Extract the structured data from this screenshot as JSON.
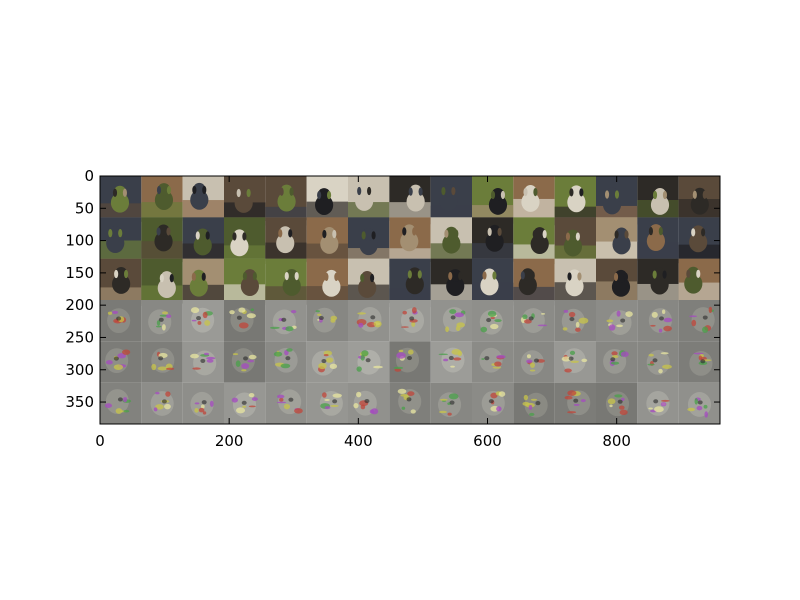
{
  "chart_data": {
    "type": "heatmap",
    "title": "",
    "xlabel": "",
    "ylabel": "",
    "xlim": [
      0,
      960
    ],
    "ylim": [
      384,
      0
    ],
    "x_ticks": [
      "0",
      "200",
      "400",
      "600",
      "800"
    ],
    "y_ticks": [
      "0",
      "50",
      "100",
      "150",
      "200",
      "250",
      "300",
      "350"
    ],
    "grid": false,
    "tile_grid": {
      "rows": 6,
      "cols": 15,
      "tile_size_data_units": 64
    },
    "rows": [
      {
        "content": "dog photograph",
        "tiles": 15
      },
      {
        "content": "dog photograph",
        "tiles": 15
      },
      {
        "content": "dog photograph",
        "tiles": 15
      },
      {
        "content": "generated sample",
        "tiles": 15
      },
      {
        "content": "generated sample",
        "tiles": 15
      },
      {
        "content": "generated sample",
        "tiles": 15
      }
    ]
  },
  "colors": {
    "frame": "#000000",
    "generated_background": "#8a8a86",
    "photo_palette": [
      "#2d2a26",
      "#5a4a3a",
      "#6b7d3a",
      "#d9d3c4",
      "#3a3f4a",
      "#8b6a4a",
      "#c8c0b0",
      "#4e5b2e",
      "#a38f72",
      "#1f1f22"
    ],
    "accent_palette": [
      "#c8c44a",
      "#c0463a",
      "#4aa04a",
      "#e8e6a0",
      "#a44ac0"
    ]
  }
}
